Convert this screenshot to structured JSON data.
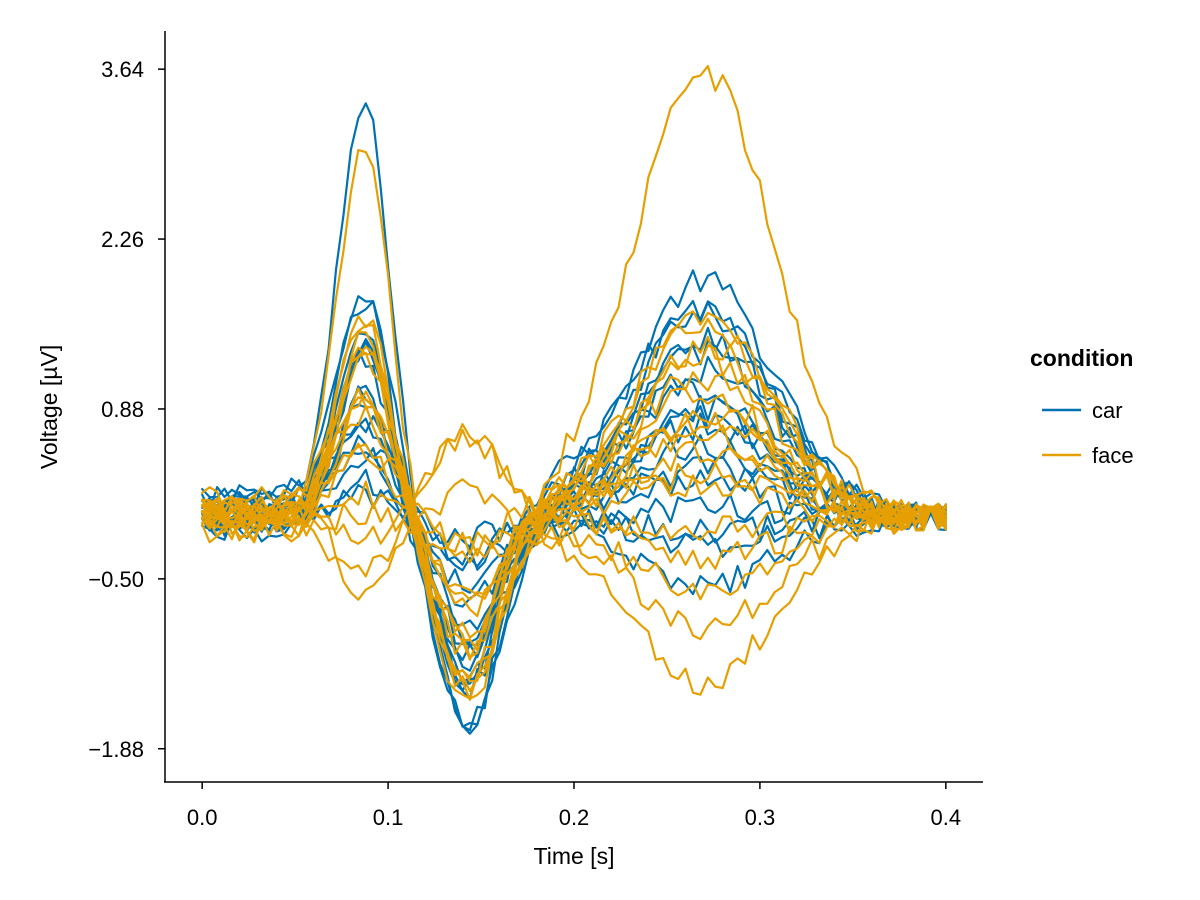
{
  "chart_data": {
    "type": "line",
    "title": "",
    "xlabel": "Time [s]",
    "ylabel": "Voltage [µV]",
    "xlim": [
      -0.02,
      0.42
    ],
    "ylim": [
      -2.15,
      3.95
    ],
    "xticks": [
      0.0,
      0.1,
      0.2,
      0.3,
      0.4
    ],
    "xtick_labels": [
      "0.0",
      "0.1",
      "0.2",
      "0.3",
      "0.4"
    ],
    "yticks": [
      -1.88,
      -0.5,
      0.88,
      2.26,
      3.64
    ],
    "ytick_labels": [
      "−1.88",
      "−0.50",
      "0.88",
      "2.26",
      "3.64"
    ],
    "grid": false,
    "legend": {
      "title": "condition",
      "position": "right",
      "entries": [
        {
          "label": "car",
          "color": "#0072B2"
        },
        {
          "label": "face",
          "color": "#E69F00"
        }
      ]
    },
    "series": [
      {
        "name": "car",
        "color": "#0072B2",
        "traces": [
          {
            "base": 0.05,
            "p1": 3.3,
            "n1": -1.75,
            "p2": 1.9
          },
          {
            "base": 0.0,
            "p1": 1.8,
            "n1": -1.7,
            "p2": 1.7
          },
          {
            "base": 0.2,
            "p1": 1.6,
            "n1": -1.55,
            "p2": 1.6
          },
          {
            "base": -0.1,
            "p1": 1.5,
            "n1": -1.6,
            "p2": 1.5
          },
          {
            "base": 0.1,
            "p1": 1.4,
            "n1": -1.45,
            "p2": 1.3
          },
          {
            "base": 0.0,
            "p1": 1.3,
            "n1": -1.4,
            "p2": 1.2
          },
          {
            "base": 0.15,
            "p1": 1.2,
            "n1": -1.3,
            "p2": 1.0
          },
          {
            "base": -0.05,
            "p1": 1.1,
            "n1": -1.35,
            "p2": 0.9
          },
          {
            "base": 0.0,
            "p1": 1.0,
            "n1": -1.2,
            "p2": 0.8
          },
          {
            "base": 0.1,
            "p1": 0.9,
            "n1": -1.1,
            "p2": 0.7
          },
          {
            "base": 0.05,
            "p1": 0.7,
            "n1": -0.9,
            "p2": 0.55
          },
          {
            "base": 0.0,
            "p1": 0.6,
            "n1": -0.7,
            "p2": 0.4
          },
          {
            "base": 0.1,
            "p1": 0.5,
            "n1": -0.5,
            "p2": 0.25
          },
          {
            "base": -0.05,
            "p1": 0.35,
            "n1": -0.3,
            "p2": 0.1
          },
          {
            "base": 0.0,
            "p1": 0.2,
            "n1": -0.15,
            "p2": -0.1
          },
          {
            "base": 0.05,
            "p1": 0.45,
            "n1": -0.6,
            "p2": -0.25
          },
          {
            "base": 0.0,
            "p1": 0.8,
            "n1": -1.0,
            "p2": -0.55
          }
        ]
      },
      {
        "name": "face",
        "color": "#E69F00",
        "traces": [
          {
            "base": 0.05,
            "p1": 2.9,
            "n1": -1.5,
            "p2": 3.6
          },
          {
            "base": 0.0,
            "p1": 1.6,
            "n1": -1.4,
            "p2": 1.6
          },
          {
            "base": 0.1,
            "p1": 1.55,
            "n1": -1.45,
            "p2": 1.5
          },
          {
            "base": -0.05,
            "p1": 1.5,
            "n1": -1.3,
            "p2": 1.4
          },
          {
            "base": 0.0,
            "p1": 1.4,
            "n1": -1.55,
            "p2": 1.3
          },
          {
            "base": 0.1,
            "p1": 1.3,
            "n1": -1.2,
            "p2": 1.1
          },
          {
            "base": 0.05,
            "p1": 1.2,
            "n1": -1.1,
            "p2": 1.0
          },
          {
            "base": -0.1,
            "p1": 1.1,
            "n1": -1.0,
            "p2": 0.9
          },
          {
            "base": 0.0,
            "p1": 1.0,
            "n1": -0.95,
            "p2": 0.8
          },
          {
            "base": 0.1,
            "p1": 0.9,
            "n1": -0.85,
            "p2": 0.65
          },
          {
            "base": 0.05,
            "p1": 0.8,
            "n1": -0.75,
            "p2": 0.5
          },
          {
            "base": 0.0,
            "p1": 0.6,
            "n1": -0.65,
            "p2": 0.35
          },
          {
            "base": 0.15,
            "p1": 0.4,
            "n1": -0.4,
            "p2": 0.2
          },
          {
            "base": 0.0,
            "p1": 0.2,
            "n1": -0.2,
            "p2": -0.1
          },
          {
            "base": 0.05,
            "p1": -0.25,
            "n1": 0.6,
            "p2": -0.35
          },
          {
            "base": 0.0,
            "p1": -0.45,
            "n1": 0.7,
            "p2": -0.9
          },
          {
            "base": -0.05,
            "p1": 0.1,
            "n1": -0.3,
            "p2": -0.55
          },
          {
            "base": -0.1,
            "p1": -0.55,
            "n1": 0.35,
            "p2": -1.3
          }
        ]
      }
    ]
  }
}
